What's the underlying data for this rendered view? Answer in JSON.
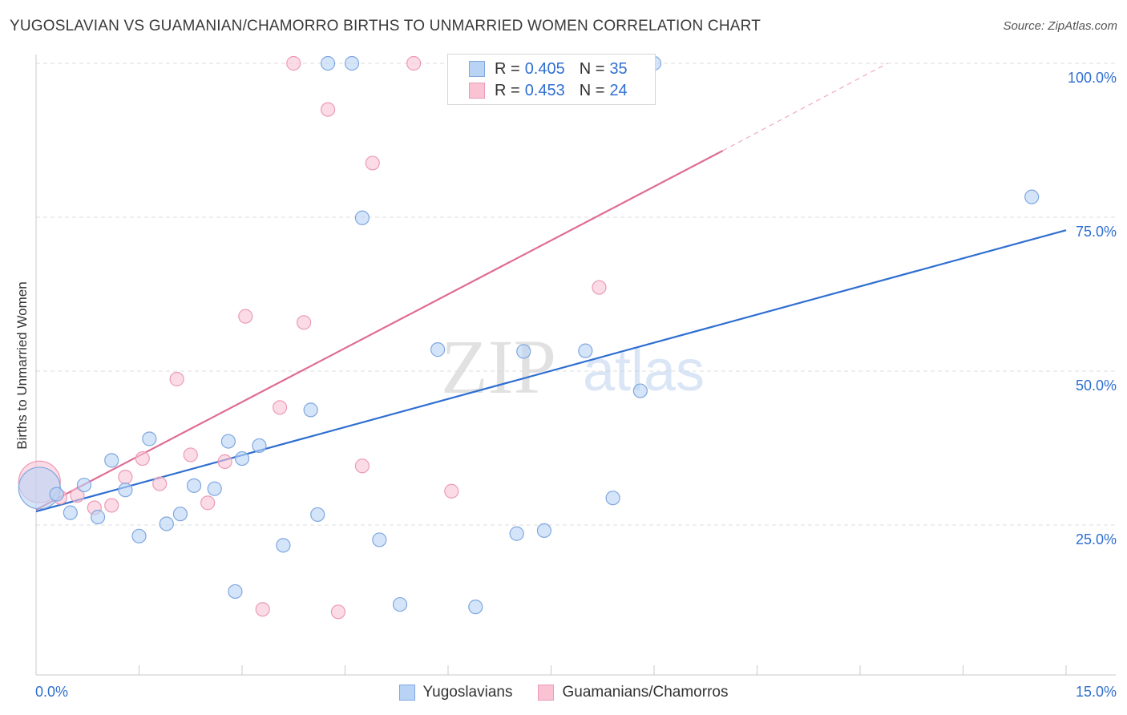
{
  "header": {
    "title": "YUGOSLAVIAN VS GUAMANIAN/CHAMORRO BIRTHS TO UNMARRIED WOMEN CORRELATION CHART",
    "source": "Source: ZipAtlas.com"
  },
  "watermark": {
    "zip": "ZIP",
    "atlas": "atlas"
  },
  "colors": {
    "blue": "#2f6fd1",
    "blue_fill": "#b9d3f5",
    "blue_stroke": "#7fa7e0",
    "pink": "#e06b93",
    "pink_fill": "#f9c3d3",
    "pink_stroke": "#ec9bb6",
    "grid": "#dedede",
    "axis_text": "#2f6fd1"
  },
  "legend": {
    "rows": [
      {
        "r_label": "R = ",
        "r_value": "0.405",
        "n_label": "N = ",
        "n_value": "35"
      },
      {
        "r_label": "R = ",
        "r_value": "0.453",
        "n_label": "N = ",
        "n_value": "24"
      }
    ]
  },
  "bottom_legend": {
    "items": [
      "Yugoslavians",
      "Guamanians/Chamorros"
    ]
  },
  "chart_data": {
    "type": "scatter",
    "title": "YUGOSLAVIAN VS GUAMANIAN/CHAMORRO BIRTHS TO UNMARRIED WOMEN CORRELATION CHART",
    "xlabel": "",
    "ylabel": "Births to Unmarried Women",
    "xlim": [
      0,
      15
    ],
    "ylim": [
      0,
      102.5
    ],
    "x_tick_labels": [
      "0.0%",
      "15.0%"
    ],
    "y_ticks": [
      25,
      50,
      75,
      100
    ],
    "y_tick_labels": [
      "25.0%",
      "50.0%",
      "75.0%",
      "100.0%"
    ],
    "grid": true,
    "series": [
      {
        "name": "Yugoslavians",
        "r": 0.405,
        "n": 35,
        "trend": {
          "x": [
            0,
            15
          ],
          "y": [
            27.2,
            72.9
          ]
        },
        "points": [
          {
            "x": 0.05,
            "y": 31.0,
            "s": 26
          },
          {
            "x": 0.3,
            "y": 30.0
          },
          {
            "x": 0.5,
            "y": 27.0
          },
          {
            "x": 0.7,
            "y": 31.5
          },
          {
            "x": 0.9,
            "y": 26.3
          },
          {
            "x": 1.1,
            "y": 35.5
          },
          {
            "x": 1.3,
            "y": 30.7
          },
          {
            "x": 1.5,
            "y": 23.2
          },
          {
            "x": 1.65,
            "y": 39.0
          },
          {
            "x": 1.9,
            "y": 25.2
          },
          {
            "x": 2.1,
            "y": 26.8
          },
          {
            "x": 2.3,
            "y": 31.4
          },
          {
            "x": 2.6,
            "y": 30.9
          },
          {
            "x": 2.8,
            "y": 38.6
          },
          {
            "x": 2.9,
            "y": 14.2
          },
          {
            "x": 3.0,
            "y": 35.8
          },
          {
            "x": 3.25,
            "y": 37.9
          },
          {
            "x": 3.6,
            "y": 21.7
          },
          {
            "x": 4.0,
            "y": 43.7
          },
          {
            "x": 4.1,
            "y": 26.7
          },
          {
            "x": 4.25,
            "y": 100.0
          },
          {
            "x": 4.6,
            "y": 100.0
          },
          {
            "x": 4.75,
            "y": 74.9
          },
          {
            "x": 5.0,
            "y": 22.6
          },
          {
            "x": 5.3,
            "y": 12.1
          },
          {
            "x": 5.85,
            "y": 53.5
          },
          {
            "x": 6.4,
            "y": 11.7
          },
          {
            "x": 7.0,
            "y": 23.6
          },
          {
            "x": 7.1,
            "y": 53.2
          },
          {
            "x": 7.4,
            "y": 24.1
          },
          {
            "x": 8.0,
            "y": 53.3
          },
          {
            "x": 8.4,
            "y": 29.4
          },
          {
            "x": 8.8,
            "y": 46.8
          },
          {
            "x": 9.0,
            "y": 100.0
          },
          {
            "x": 14.5,
            "y": 78.3
          }
        ]
      },
      {
        "name": "Guamanians/Chamorros",
        "r": 0.453,
        "n": 24,
        "trend": {
          "x": [
            0,
            10.0
          ],
          "y": [
            27.5,
            85.8
          ]
        },
        "trend_extension": {
          "x": [
            10.0,
            12.4
          ],
          "y": [
            85.8,
            100.0
          ]
        },
        "points": [
          {
            "x": 0.05,
            "y": 32.0,
            "s": 26
          },
          {
            "x": 0.35,
            "y": 29.5
          },
          {
            "x": 0.6,
            "y": 29.8
          },
          {
            "x": 0.85,
            "y": 27.8
          },
          {
            "x": 1.1,
            "y": 28.2
          },
          {
            "x": 1.3,
            "y": 32.8
          },
          {
            "x": 1.55,
            "y": 35.8
          },
          {
            "x": 1.8,
            "y": 31.7
          },
          {
            "x": 2.05,
            "y": 48.7
          },
          {
            "x": 2.25,
            "y": 36.4
          },
          {
            "x": 2.5,
            "y": 28.6
          },
          {
            "x": 2.75,
            "y": 35.3
          },
          {
            "x": 3.05,
            "y": 58.9
          },
          {
            "x": 3.3,
            "y": 11.3
          },
          {
            "x": 3.55,
            "y": 44.1
          },
          {
            "x": 3.75,
            "y": 100.0
          },
          {
            "x": 3.9,
            "y": 57.9
          },
          {
            "x": 4.25,
            "y": 92.5
          },
          {
            "x": 4.4,
            "y": 10.9
          },
          {
            "x": 4.75,
            "y": 34.6
          },
          {
            "x": 4.9,
            "y": 83.8
          },
          {
            "x": 5.5,
            "y": 100.0
          },
          {
            "x": 6.05,
            "y": 30.5
          },
          {
            "x": 8.2,
            "y": 63.6
          }
        ]
      }
    ]
  }
}
